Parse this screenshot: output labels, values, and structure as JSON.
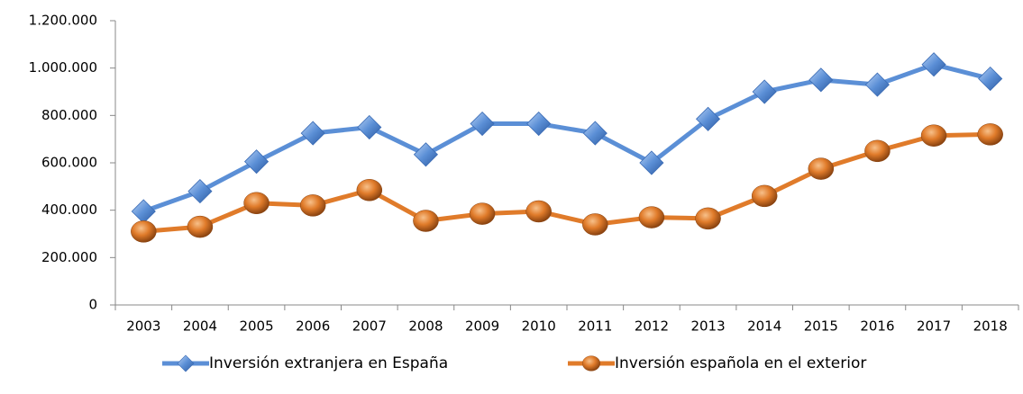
{
  "chart_data": {
    "type": "line",
    "categories": [
      "2003",
      "2004",
      "2005",
      "2006",
      "2007",
      "2008",
      "2009",
      "2010",
      "2011",
      "2012",
      "2013",
      "2014",
      "2015",
      "2016",
      "2017",
      "2018"
    ],
    "series": [
      {
        "name": "Inversión extranjera en España",
        "color": "#5b8fd6",
        "marker": "diamond",
        "values": [
          395000,
          480000,
          605000,
          725000,
          750000,
          635000,
          765000,
          765000,
          725000,
          600000,
          785000,
          900000,
          950000,
          930000,
          1015000,
          955000
        ]
      },
      {
        "name": "Inversión española en el exterior",
        "color": "#e07b2a",
        "marker": "circle",
        "values": [
          310000,
          330000,
          430000,
          420000,
          485000,
          355000,
          385000,
          395000,
          340000,
          370000,
          365000,
          460000,
          575000,
          650000,
          715000,
          720000
        ]
      }
    ],
    "ylim": [
      0,
      1200000
    ],
    "yticks": [
      0,
      {
        "value": 200000,
        "label": "200.000"
      },
      {
        "value": 400000,
        "label": "400.000"
      },
      {
        "value": 600000,
        "label": "600.000"
      },
      {
        "value": 800000,
        "label": "800.000"
      },
      {
        "value": 1000000,
        "label": "1.000.000"
      },
      {
        "value": 1200000,
        "label": "1.200.000"
      }
    ],
    "grid": false,
    "legend": "bottom"
  }
}
